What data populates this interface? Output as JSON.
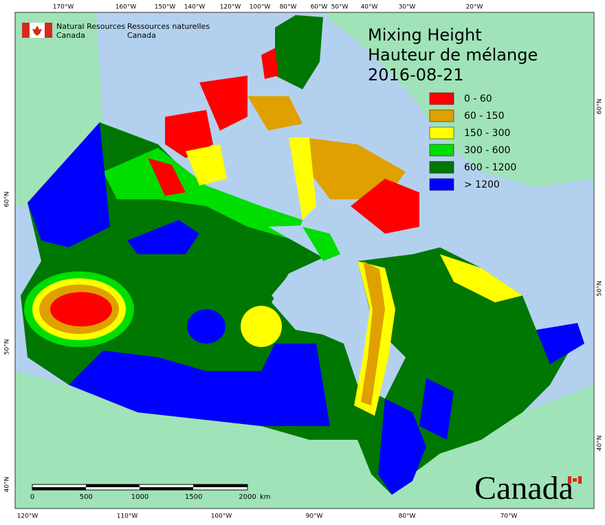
{
  "logo": {
    "en": [
      "Natural Resources",
      "Canada"
    ],
    "fr": [
      "Ressources naturelles",
      "Canada"
    ]
  },
  "title": [
    "Mixing Height",
    "Hauteur de mélange",
    "2016-08-21"
  ],
  "legend": [
    {
      "label": "0 - 60",
      "color": "#ff0000"
    },
    {
      "label": "60 - 150",
      "color": "#e0a000"
    },
    {
      "label": "150 - 300",
      "color": "#ffff00"
    },
    {
      "label": "300 - 600",
      "color": "#00dd00"
    },
    {
      "label": "600 - 1200",
      "color": "#007700"
    },
    {
      "label": "> 1200",
      "color": "#0000ff"
    }
  ],
  "graticule": {
    "top": [
      "170°W",
      "160°W",
      "150°W",
      "140°W",
      "120°W",
      "100°W",
      "80°W",
      "60°W",
      "50°W",
      "40°W",
      "30°W",
      "20°W"
    ],
    "bottom": [
      "120°W",
      "110°W",
      "100°W",
      "90°W",
      "80°W",
      "70°W"
    ],
    "left": [
      "60°N",
      "50°N",
      "40°N"
    ],
    "right": [
      "60°N",
      "50°N",
      "40°N"
    ]
  },
  "scale_bar": {
    "ticks": [
      "0",
      "500",
      "1000",
      "1500",
      "2000"
    ],
    "unit": "km"
  },
  "wordmark": "Canada"
}
